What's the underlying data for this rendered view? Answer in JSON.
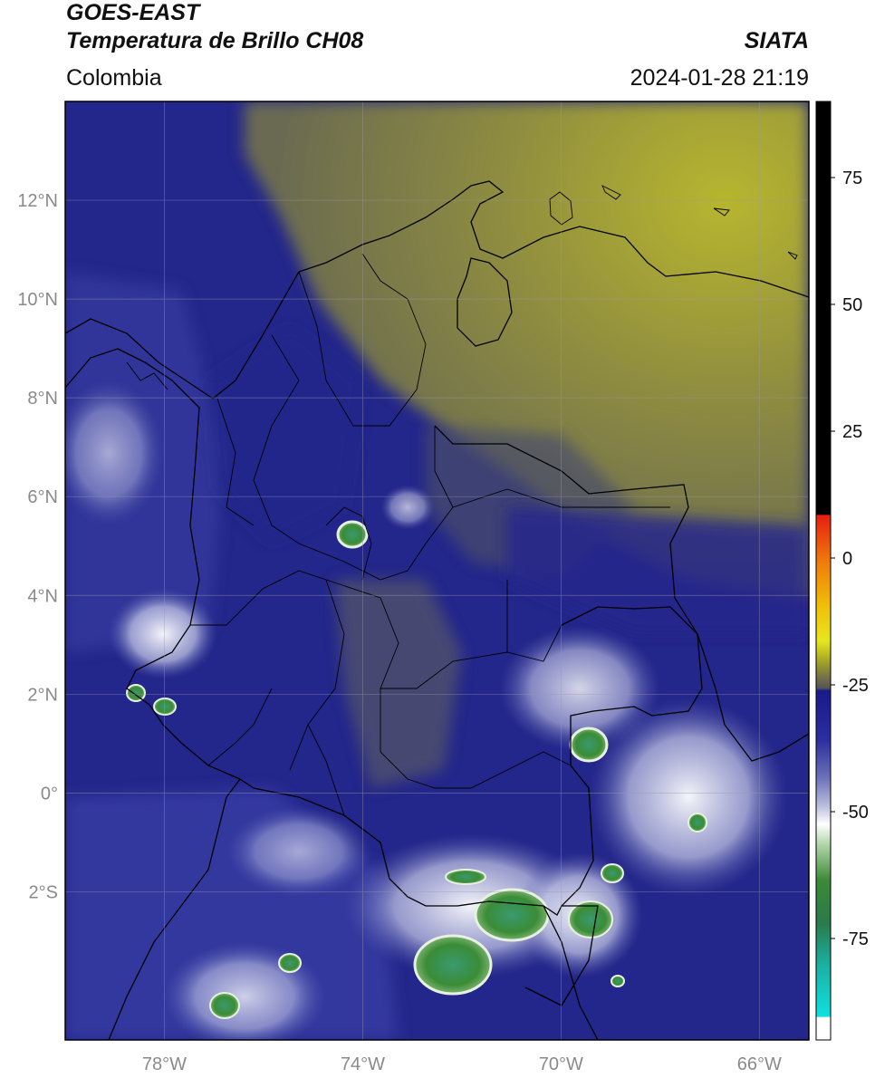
{
  "header": {
    "satellite": "GOES-EAST",
    "product": "Temperatura de Brillo CH08",
    "agency": "SIATA",
    "region": "Colombia",
    "datetime": "2024-01-28 21:19"
  },
  "map": {
    "lat_labels": [
      {
        "value": 12,
        "label": "12°N"
      },
      {
        "value": 10,
        "label": "10°N"
      },
      {
        "value": 8,
        "label": "8°N"
      },
      {
        "value": 6,
        "label": "6°N"
      },
      {
        "value": 4,
        "label": "4°N"
      },
      {
        "value": 2,
        "label": "2°N"
      },
      {
        "value": 0,
        "label": "0°"
      },
      {
        "value": -2,
        "label": "2°S"
      }
    ],
    "lon_labels": [
      {
        "value": -78,
        "label": "78°W"
      },
      {
        "value": -74,
        "label": "74°W"
      },
      {
        "value": -70,
        "label": "70°W"
      },
      {
        "value": -66,
        "label": "66°W"
      }
    ],
    "extent": {
      "lon_min": -80,
      "lon_max": -65,
      "lat_min": -5,
      "lat_max": 14
    },
    "colors": {
      "background": "#23268a",
      "dry_air": "#8c8a3a",
      "cold_cloud": "#dfe4f2",
      "coldest": "#3a8c36"
    }
  },
  "colorbar": {
    "ticks": [
      {
        "value": 75,
        "label": "75"
      },
      {
        "value": 50,
        "label": "50"
      },
      {
        "value": 25,
        "label": "25"
      },
      {
        "value": 0,
        "label": "0"
      },
      {
        "value": -25,
        "label": "-25"
      },
      {
        "value": -50,
        "label": "-50"
      },
      {
        "value": -75,
        "label": "-75"
      }
    ],
    "range": [
      -95,
      90
    ]
  }
}
